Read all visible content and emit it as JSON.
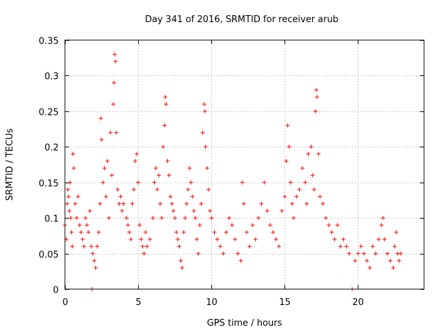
{
  "chart_data": {
    "type": "scatter",
    "title": "Day 341 of 2016, SRMTID for receiver arub",
    "xlabel": "GPS time / hours",
    "ylabel": "SRMTID / TECUs",
    "xlim": [
      0,
      24.5
    ],
    "ylim": [
      0,
      0.35
    ],
    "xticks": [
      0,
      5,
      10,
      15,
      20
    ],
    "xtick_labels": [
      "0",
      "5",
      "10",
      "15",
      "20"
    ],
    "yticks": [
      0,
      0.05,
      0.1,
      0.15,
      0.2,
      0.25,
      0.3,
      0.35
    ],
    "ytick_labels": [
      "0",
      "0.05",
      "0.1",
      "0.15",
      "0.2",
      "0.25",
      "0.3",
      "0.35"
    ],
    "grid": true,
    "marker": "+",
    "color": "#ff0000",
    "series": [
      {
        "name": "SRMTID",
        "points": [
          [
            0.0,
            0.09
          ],
          [
            0.1,
            0.07
          ],
          [
            0.15,
            0.12
          ],
          [
            0.2,
            0.14
          ],
          [
            0.25,
            0.13
          ],
          [
            0.3,
            0.11
          ],
          [
            0.35,
            0.15
          ],
          [
            0.4,
            0.1
          ],
          [
            0.45,
            0.08
          ],
          [
            0.5,
            0.06
          ],
          [
            0.55,
            0.19
          ],
          [
            0.6,
            0.17
          ],
          [
            0.7,
            0.12
          ],
          [
            0.8,
            0.1
          ],
          [
            0.9,
            0.13
          ],
          [
            1.0,
            0.09
          ],
          [
            1.1,
            0.08
          ],
          [
            1.2,
            0.07
          ],
          [
            1.3,
            0.06
          ],
          [
            1.4,
            0.1
          ],
          [
            1.5,
            0.09
          ],
          [
            1.6,
            0.08
          ],
          [
            1.7,
            0.11
          ],
          [
            1.8,
            0.06
          ],
          [
            1.85,
            0.0
          ],
          [
            1.9,
            0.05
          ],
          [
            2.0,
            0.04
          ],
          [
            2.1,
            0.03
          ],
          [
            2.2,
            0.06
          ],
          [
            2.3,
            0.08
          ],
          [
            2.4,
            0.12
          ],
          [
            2.45,
            0.24
          ],
          [
            2.5,
            0.21
          ],
          [
            2.6,
            0.15
          ],
          [
            2.7,
            0.17
          ],
          [
            2.8,
            0.13
          ],
          [
            2.9,
            0.18
          ],
          [
            3.0,
            0.1
          ],
          [
            3.1,
            0.22
          ],
          [
            3.2,
            0.16
          ],
          [
            3.3,
            0.26
          ],
          [
            3.35,
            0.29
          ],
          [
            3.4,
            0.33
          ],
          [
            3.45,
            0.32
          ],
          [
            3.5,
            0.22
          ],
          [
            3.6,
            0.14
          ],
          [
            3.7,
            0.12
          ],
          [
            3.8,
            0.13
          ],
          [
            3.9,
            0.11
          ],
          [
            4.0,
            0.12
          ],
          [
            4.2,
            0.1
          ],
          [
            4.3,
            0.09
          ],
          [
            4.4,
            0.08
          ],
          [
            4.5,
            0.07
          ],
          [
            4.6,
            0.12
          ],
          [
            4.7,
            0.14
          ],
          [
            4.8,
            0.18
          ],
          [
            4.9,
            0.19
          ],
          [
            5.0,
            0.15
          ],
          [
            5.1,
            0.09
          ],
          [
            5.2,
            0.07
          ],
          [
            5.3,
            0.06
          ],
          [
            5.4,
            0.05
          ],
          [
            5.5,
            0.08
          ],
          [
            5.6,
            0.06
          ],
          [
            5.8,
            0.07
          ],
          [
            6.0,
            0.1
          ],
          [
            6.1,
            0.15
          ],
          [
            6.2,
            0.17
          ],
          [
            6.3,
            0.14
          ],
          [
            6.4,
            0.16
          ],
          [
            6.5,
            0.12
          ],
          [
            6.6,
            0.1
          ],
          [
            6.7,
            0.2
          ],
          [
            6.8,
            0.23
          ],
          [
            6.85,
            0.27
          ],
          [
            6.9,
            0.26
          ],
          [
            7.0,
            0.18
          ],
          [
            7.1,
            0.16
          ],
          [
            7.2,
            0.13
          ],
          [
            7.3,
            0.12
          ],
          [
            7.4,
            0.11
          ],
          [
            7.5,
            0.1
          ],
          [
            7.6,
            0.08
          ],
          [
            7.7,
            0.07
          ],
          [
            7.8,
            0.06
          ],
          [
            7.9,
            0.04
          ],
          [
            8.0,
            0.03
          ],
          [
            8.1,
            0.08
          ],
          [
            8.2,
            0.1
          ],
          [
            8.3,
            0.12
          ],
          [
            8.4,
            0.14
          ],
          [
            8.5,
            0.17
          ],
          [
            8.6,
            0.15
          ],
          [
            8.7,
            0.13
          ],
          [
            8.8,
            0.11
          ],
          [
            8.9,
            0.1
          ],
          [
            9.0,
            0.07
          ],
          [
            9.1,
            0.05
          ],
          [
            9.2,
            0.09
          ],
          [
            9.3,
            0.12
          ],
          [
            9.4,
            0.22
          ],
          [
            9.5,
            0.26
          ],
          [
            9.55,
            0.25
          ],
          [
            9.6,
            0.2
          ],
          [
            9.7,
            0.17
          ],
          [
            9.8,
            0.14
          ],
          [
            9.9,
            0.11
          ],
          [
            10.0,
            0.1
          ],
          [
            10.2,
            0.08
          ],
          [
            10.4,
            0.07
          ],
          [
            10.6,
            0.06
          ],
          [
            10.8,
            0.05
          ],
          [
            11.0,
            0.08
          ],
          [
            11.2,
            0.1
          ],
          [
            11.4,
            0.09
          ],
          [
            11.6,
            0.07
          ],
          [
            11.8,
            0.05
          ],
          [
            12.0,
            0.04
          ],
          [
            12.1,
            0.15
          ],
          [
            12.2,
            0.12
          ],
          [
            12.4,
            0.08
          ],
          [
            12.6,
            0.06
          ],
          [
            12.8,
            0.09
          ],
          [
            13.0,
            0.07
          ],
          [
            13.2,
            0.1
          ],
          [
            13.4,
            0.12
          ],
          [
            13.6,
            0.15
          ],
          [
            13.8,
            0.11
          ],
          [
            14.0,
            0.09
          ],
          [
            14.2,
            0.08
          ],
          [
            14.4,
            0.07
          ],
          [
            14.6,
            0.06
          ],
          [
            14.8,
            0.11
          ],
          [
            15.0,
            0.13
          ],
          [
            15.1,
            0.18
          ],
          [
            15.2,
            0.23
          ],
          [
            15.3,
            0.2
          ],
          [
            15.4,
            0.15
          ],
          [
            15.5,
            0.12
          ],
          [
            15.6,
            0.1
          ],
          [
            15.8,
            0.13
          ],
          [
            16.0,
            0.14
          ],
          [
            16.2,
            0.17
          ],
          [
            16.4,
            0.15
          ],
          [
            16.5,
            0.12
          ],
          [
            16.6,
            0.19
          ],
          [
            16.8,
            0.2
          ],
          [
            16.9,
            0.16
          ],
          [
            17.0,
            0.14
          ],
          [
            17.1,
            0.25
          ],
          [
            17.15,
            0.28
          ],
          [
            17.2,
            0.27
          ],
          [
            17.3,
            0.19
          ],
          [
            17.4,
            0.13
          ],
          [
            17.6,
            0.12
          ],
          [
            17.8,
            0.1
          ],
          [
            18.0,
            0.09
          ],
          [
            18.2,
            0.08
          ],
          [
            18.4,
            0.07
          ],
          [
            18.6,
            0.09
          ],
          [
            18.8,
            0.06
          ],
          [
            19.0,
            0.07
          ],
          [
            19.2,
            0.06
          ],
          [
            19.4,
            0.05
          ],
          [
            19.6,
            0.0
          ],
          [
            19.8,
            0.04
          ],
          [
            20.0,
            0.05
          ],
          [
            20.2,
            0.06
          ],
          [
            20.4,
            0.05
          ],
          [
            20.6,
            0.04
          ],
          [
            20.8,
            0.03
          ],
          [
            21.0,
            0.06
          ],
          [
            21.2,
            0.05
          ],
          [
            21.4,
            0.07
          ],
          [
            21.6,
            0.09
          ],
          [
            21.7,
            0.1
          ],
          [
            21.8,
            0.07
          ],
          [
            22.0,
            0.05
          ],
          [
            22.2,
            0.04
          ],
          [
            22.4,
            0.03
          ],
          [
            22.5,
            0.06
          ],
          [
            22.6,
            0.08
          ],
          [
            22.7,
            0.05
          ],
          [
            22.8,
            0.04
          ],
          [
            22.9,
            0.05
          ]
        ]
      }
    ]
  }
}
